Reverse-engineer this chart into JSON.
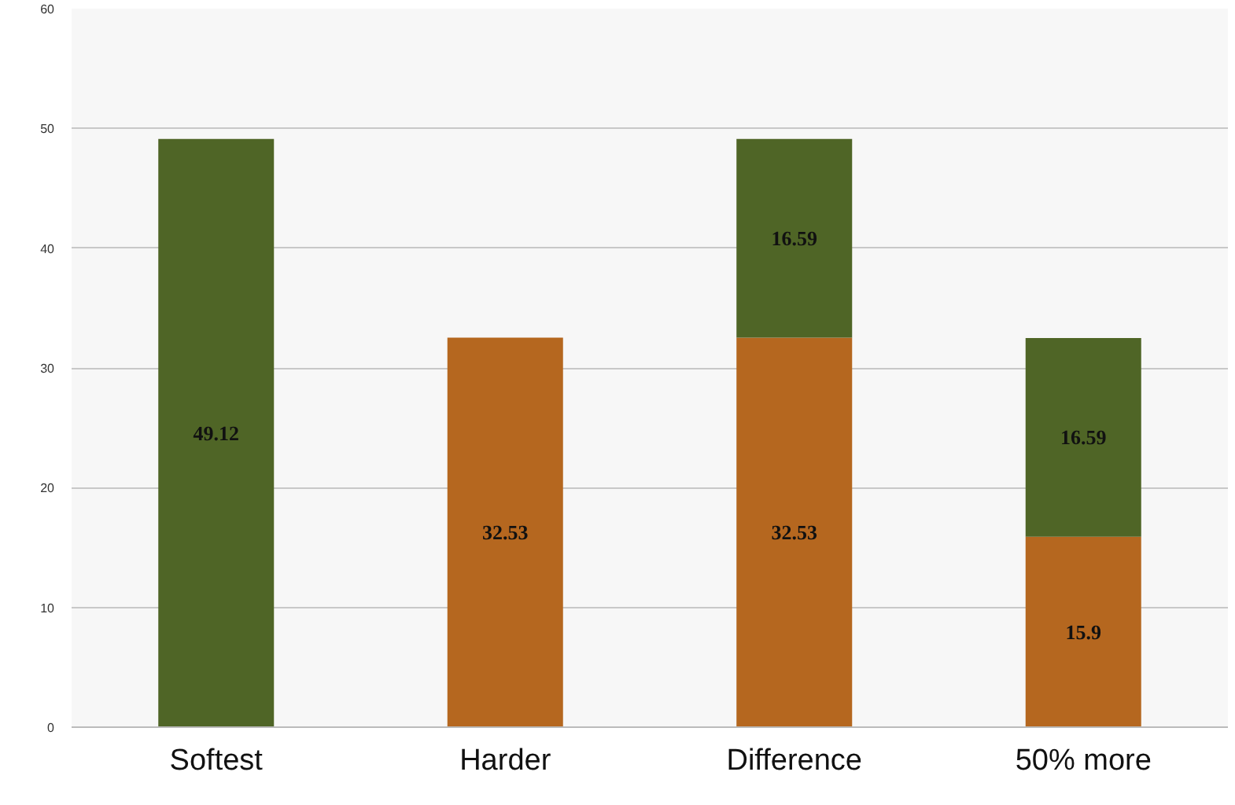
{
  "chart_data": {
    "type": "bar",
    "stacked": true,
    "categories": [
      "Softest",
      "Harder",
      "Difference",
      "50% more"
    ],
    "series": [
      {
        "color": "#b5671f",
        "values": [
          null,
          32.53,
          32.53,
          15.9
        ]
      },
      {
        "color": "#4f6526",
        "values": [
          49.12,
          null,
          16.59,
          16.59
        ]
      }
    ],
    "ylim": [
      0,
      60
    ],
    "yticks": [
      0,
      10,
      20,
      30,
      40,
      50,
      60
    ],
    "grid": "y",
    "data_labels": true
  }
}
